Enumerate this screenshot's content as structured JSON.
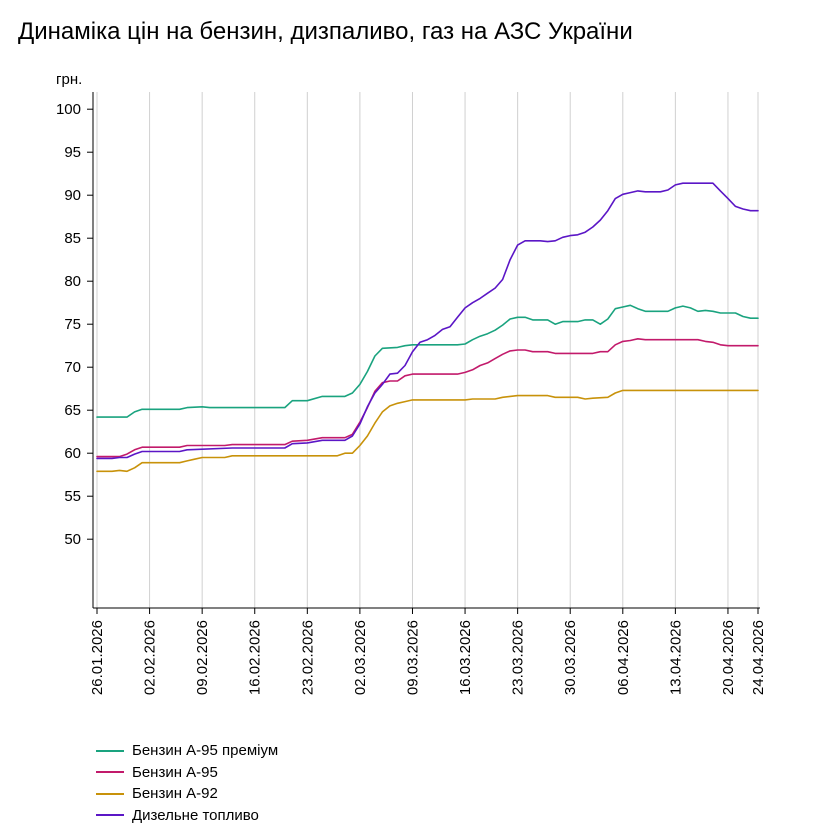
{
  "title": "Динаміка цін на бензин, дизпаливо, газ на АЗС України",
  "chart_data": {
    "type": "line",
    "title": "Динаміка цін на бензин, дизпаливо, газ на АЗС України",
    "ylabel": "грн.",
    "xlabel": "",
    "ylim": [
      42,
      102
    ],
    "yticks": [
      50,
      55,
      60,
      65,
      70,
      75,
      80,
      85,
      90,
      95,
      100
    ],
    "start_date": "26.01.2026",
    "n_days": 89,
    "x_tick_labels": [
      "26.01.2026",
      "02.02.2026",
      "09.02.2026",
      "16.02.2026",
      "23.02.2026",
      "02.03.2026",
      "09.03.2026",
      "16.03.2026",
      "23.03.2026",
      "30.03.2026",
      "06.04.2026",
      "13.04.2026",
      "20.04.2026",
      "24.04.2026"
    ],
    "x_tick_days": [
      0,
      7,
      14,
      21,
      28,
      35,
      42,
      49,
      56,
      63,
      70,
      77,
      84,
      88
    ],
    "grid": "vertical",
    "legend_position": "bottom-left",
    "series": [
      {
        "name": "Бензин А-95 преміум",
        "color": "#1aa37f",
        "points": [
          [
            0,
            64.2
          ],
          [
            4,
            64.2
          ],
          [
            5,
            64.8
          ],
          [
            6,
            65.1
          ],
          [
            11,
            65.1
          ],
          [
            12,
            65.3
          ],
          [
            14,
            65.4
          ],
          [
            15,
            65.3
          ],
          [
            25,
            65.3
          ],
          [
            26,
            66.1
          ],
          [
            28,
            66.1
          ],
          [
            30,
            66.6
          ],
          [
            33,
            66.6
          ],
          [
            34,
            67.0
          ],
          [
            35,
            68.0
          ],
          [
            36,
            69.5
          ],
          [
            37,
            71.3
          ],
          [
            38,
            72.2
          ],
          [
            40,
            72.3
          ],
          [
            41,
            72.5
          ],
          [
            42,
            72.6
          ],
          [
            44,
            72.6
          ],
          [
            48,
            72.6
          ],
          [
            49,
            72.7
          ],
          [
            50,
            73.2
          ],
          [
            51,
            73.6
          ],
          [
            52,
            73.9
          ],
          [
            53,
            74.3
          ],
          [
            54,
            74.9
          ],
          [
            55,
            75.6
          ],
          [
            56,
            75.8
          ],
          [
            57,
            75.8
          ],
          [
            58,
            75.5
          ],
          [
            60,
            75.5
          ],
          [
            61,
            75.0
          ],
          [
            62,
            75.3
          ],
          [
            64,
            75.3
          ],
          [
            65,
            75.5
          ],
          [
            66,
            75.5
          ],
          [
            67,
            75.0
          ],
          [
            68,
            75.6
          ],
          [
            69,
            76.8
          ],
          [
            70,
            77.0
          ],
          [
            71,
            77.2
          ],
          [
            72,
            76.8
          ],
          [
            73,
            76.5
          ],
          [
            76,
            76.5
          ],
          [
            77,
            76.9
          ],
          [
            78,
            77.1
          ],
          [
            79,
            76.9
          ],
          [
            80,
            76.5
          ],
          [
            81,
            76.6
          ],
          [
            82,
            76.5
          ],
          [
            83,
            76.3
          ],
          [
            85,
            76.3
          ],
          [
            86,
            75.9
          ],
          [
            87,
            75.7
          ],
          [
            88,
            75.7
          ]
        ]
      },
      {
        "name": "Бензин А-95",
        "color": "#c21a6b",
        "points": [
          [
            0,
            59.6
          ],
          [
            3,
            59.6
          ],
          [
            4,
            59.9
          ],
          [
            5,
            60.4
          ],
          [
            6,
            60.7
          ],
          [
            11,
            60.7
          ],
          [
            12,
            60.9
          ],
          [
            17,
            60.9
          ],
          [
            18,
            61.0
          ],
          [
            25,
            61.0
          ],
          [
            26,
            61.4
          ],
          [
            28,
            61.5
          ],
          [
            30,
            61.8
          ],
          [
            33,
            61.8
          ],
          [
            34,
            62.2
          ],
          [
            35,
            63.6
          ],
          [
            36,
            65.3
          ],
          [
            37,
            67.2
          ],
          [
            38,
            68.2
          ],
          [
            39,
            68.4
          ],
          [
            40,
            68.4
          ],
          [
            41,
            69.0
          ],
          [
            42,
            69.2
          ],
          [
            48,
            69.2
          ],
          [
            49,
            69.4
          ],
          [
            50,
            69.7
          ],
          [
            51,
            70.2
          ],
          [
            52,
            70.5
          ],
          [
            53,
            71.0
          ],
          [
            54,
            71.5
          ],
          [
            55,
            71.9
          ],
          [
            56,
            72.0
          ],
          [
            57,
            72.0
          ],
          [
            58,
            71.8
          ],
          [
            60,
            71.8
          ],
          [
            61,
            71.6
          ],
          [
            66,
            71.6
          ],
          [
            67,
            71.8
          ],
          [
            68,
            71.8
          ],
          [
            69,
            72.6
          ],
          [
            70,
            73.0
          ],
          [
            71,
            73.1
          ],
          [
            72,
            73.3
          ],
          [
            73,
            73.2
          ],
          [
            80,
            73.2
          ],
          [
            81,
            73.0
          ],
          [
            82,
            72.9
          ],
          [
            83,
            72.6
          ],
          [
            84,
            72.5
          ],
          [
            88,
            72.5
          ]
        ]
      },
      {
        "name": "Бензин А-92",
        "color": "#c8920a",
        "points": [
          [
            0,
            57.9
          ],
          [
            2,
            57.9
          ],
          [
            3,
            58.0
          ],
          [
            4,
            57.9
          ],
          [
            5,
            58.3
          ],
          [
            6,
            58.9
          ],
          [
            11,
            58.9
          ],
          [
            12,
            59.1
          ],
          [
            13,
            59.3
          ],
          [
            14,
            59.5
          ],
          [
            17,
            59.5
          ],
          [
            18,
            59.7
          ],
          [
            32,
            59.7
          ],
          [
            33,
            60.0
          ],
          [
            34,
            60.0
          ],
          [
            35,
            60.9
          ],
          [
            36,
            62.0
          ],
          [
            37,
            63.5
          ],
          [
            38,
            64.8
          ],
          [
            39,
            65.5
          ],
          [
            40,
            65.8
          ],
          [
            41,
            66.0
          ],
          [
            42,
            66.2
          ],
          [
            49,
            66.2
          ],
          [
            50,
            66.3
          ],
          [
            53,
            66.3
          ],
          [
            54,
            66.5
          ],
          [
            55,
            66.6
          ],
          [
            56,
            66.7
          ],
          [
            60,
            66.7
          ],
          [
            61,
            66.5
          ],
          [
            64,
            66.5
          ],
          [
            65,
            66.3
          ],
          [
            66,
            66.4
          ],
          [
            68,
            66.5
          ],
          [
            69,
            67.0
          ],
          [
            70,
            67.3
          ],
          [
            88,
            67.3
          ]
        ]
      },
      {
        "name": "Дизельне топливо",
        "color": "#5b16c6",
        "points": [
          [
            0,
            59.4
          ],
          [
            2,
            59.4
          ],
          [
            3,
            59.5
          ],
          [
            4,
            59.5
          ],
          [
            5,
            59.9
          ],
          [
            6,
            60.2
          ],
          [
            11,
            60.2
          ],
          [
            12,
            60.4
          ],
          [
            18,
            60.6
          ],
          [
            25,
            60.6
          ],
          [
            26,
            61.1
          ],
          [
            28,
            61.2
          ],
          [
            30,
            61.5
          ],
          [
            33,
            61.5
          ],
          [
            34,
            62.0
          ],
          [
            35,
            63.4
          ],
          [
            36,
            65.4
          ],
          [
            37,
            67.0
          ],
          [
            38,
            68.0
          ],
          [
            39,
            69.2
          ],
          [
            40,
            69.3
          ],
          [
            41,
            70.2
          ],
          [
            42,
            71.8
          ],
          [
            43,
            72.9
          ],
          [
            44,
            73.2
          ],
          [
            45,
            73.7
          ],
          [
            46,
            74.4
          ],
          [
            47,
            74.7
          ],
          [
            48,
            75.8
          ],
          [
            49,
            76.9
          ],
          [
            50,
            77.5
          ],
          [
            51,
            78.0
          ],
          [
            52,
            78.6
          ],
          [
            53,
            79.2
          ],
          [
            54,
            80.2
          ],
          [
            55,
            82.5
          ],
          [
            56,
            84.2
          ],
          [
            57,
            84.7
          ],
          [
            58,
            84.7
          ],
          [
            59,
            84.7
          ],
          [
            60,
            84.6
          ],
          [
            61,
            84.7
          ],
          [
            62,
            85.1
          ],
          [
            63,
            85.3
          ],
          [
            64,
            85.4
          ],
          [
            65,
            85.7
          ],
          [
            66,
            86.3
          ],
          [
            67,
            87.1
          ],
          [
            68,
            88.2
          ],
          [
            69,
            89.6
          ],
          [
            70,
            90.1
          ],
          [
            71,
            90.3
          ],
          [
            72,
            90.5
          ],
          [
            73,
            90.4
          ],
          [
            74,
            90.4
          ],
          [
            75,
            90.4
          ],
          [
            76,
            90.6
          ],
          [
            77,
            91.2
          ],
          [
            78,
            91.4
          ],
          [
            82,
            91.4
          ],
          [
            83,
            90.5
          ],
          [
            84,
            89.6
          ],
          [
            85,
            88.7
          ],
          [
            86,
            88.4
          ],
          [
            87,
            88.2
          ],
          [
            88,
            88.2
          ]
        ]
      }
    ]
  }
}
